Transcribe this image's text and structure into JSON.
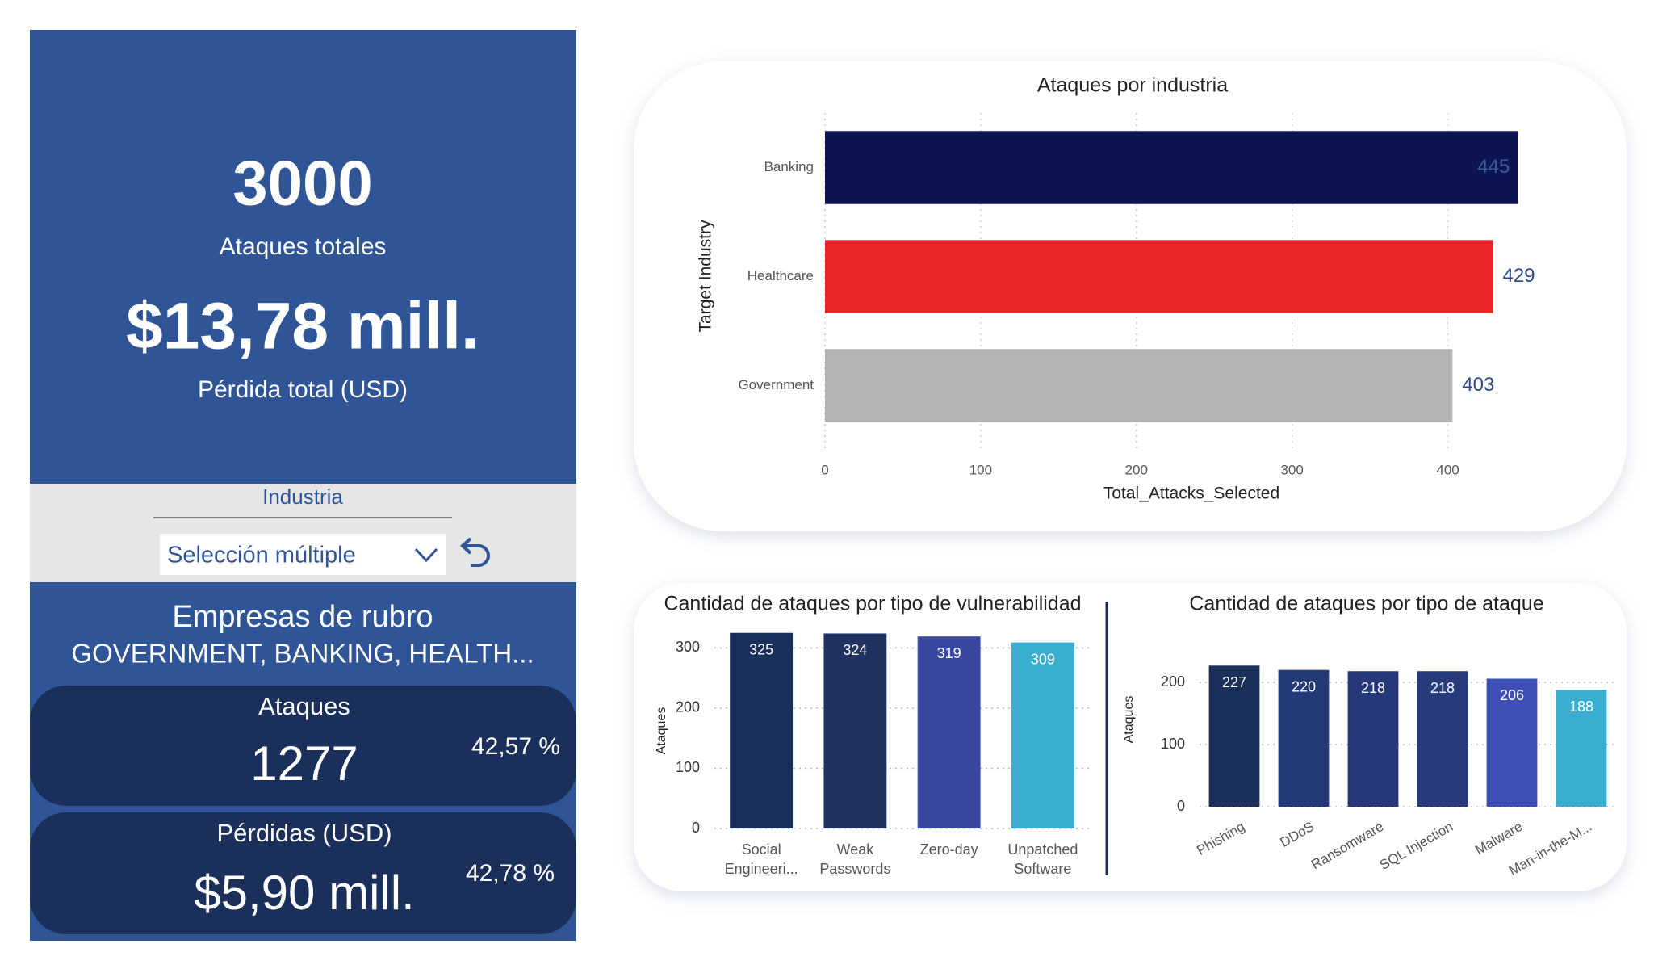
{
  "summary": {
    "total_attacks": 3000,
    "total_attacks_label": "Ataques totales",
    "total_loss": "$13,78 mill.",
    "total_loss_label": "Pérdida total (USD)"
  },
  "slicer": {
    "title": "Industria",
    "value": "Selección múltiple"
  },
  "selection": {
    "title": "Empresas de rubro",
    "industries": "GOVERNMENT, BANKING, HEALTH...",
    "attacks_label": "Ataques",
    "attacks": 1277,
    "attacks_share": "42,57 %",
    "losses_label": "Pérdidas (USD)",
    "losses": "$5,90 mill.",
    "losses_share": "42,78 %"
  },
  "chart_data": [
    {
      "type": "bar",
      "orientation": "horizontal",
      "title": "Ataques por industria",
      "x_label": "Total_Attacks_Selected",
      "y_label": "Target Industry",
      "categories": [
        "Banking",
        "Healthcare",
        "Government"
      ],
      "values": [
        445,
        429,
        403
      ],
      "colors": [
        "#0d1452",
        "#e8262a",
        "#b3b3b3"
      ],
      "xlim": [
        0,
        450
      ],
      "xticks": [
        0,
        100,
        200,
        300,
        400
      ],
      "grid": true
    },
    {
      "type": "bar",
      "orientation": "vertical",
      "title": "Cantidad de ataques por tipo de vulnerabilidad",
      "y_label": "Ataques",
      "categories": [
        "Social Engineeri...",
        "Weak Passwords",
        "Zero-day",
        "Unpatched Software"
      ],
      "values": [
        325,
        324,
        319,
        309
      ],
      "colors": [
        "#1b2f5b",
        "#1f3260",
        "#3a47a0",
        "#3aaed0"
      ],
      "ylim": [
        0,
        330
      ],
      "yticks": [
        0,
        100,
        200,
        300
      ],
      "grid": true
    },
    {
      "type": "bar",
      "orientation": "vertical",
      "title": "Cantidad de ataques por tipo de ataque",
      "y_label": "Ataques",
      "categories": [
        "Phishing",
        "DDoS",
        "Ransomware",
        "SQL Injection",
        "Malware",
        "Man-in-the-M..."
      ],
      "values": [
        227,
        220,
        218,
        218,
        206,
        188
      ],
      "colors": [
        "#1b2f5b",
        "#243a78",
        "#25387a",
        "#273b7c",
        "#3f4fb8",
        "#3aaed0"
      ],
      "ylim": [
        0,
        230
      ],
      "yticks": [
        0,
        100,
        200
      ],
      "grid": true
    }
  ]
}
